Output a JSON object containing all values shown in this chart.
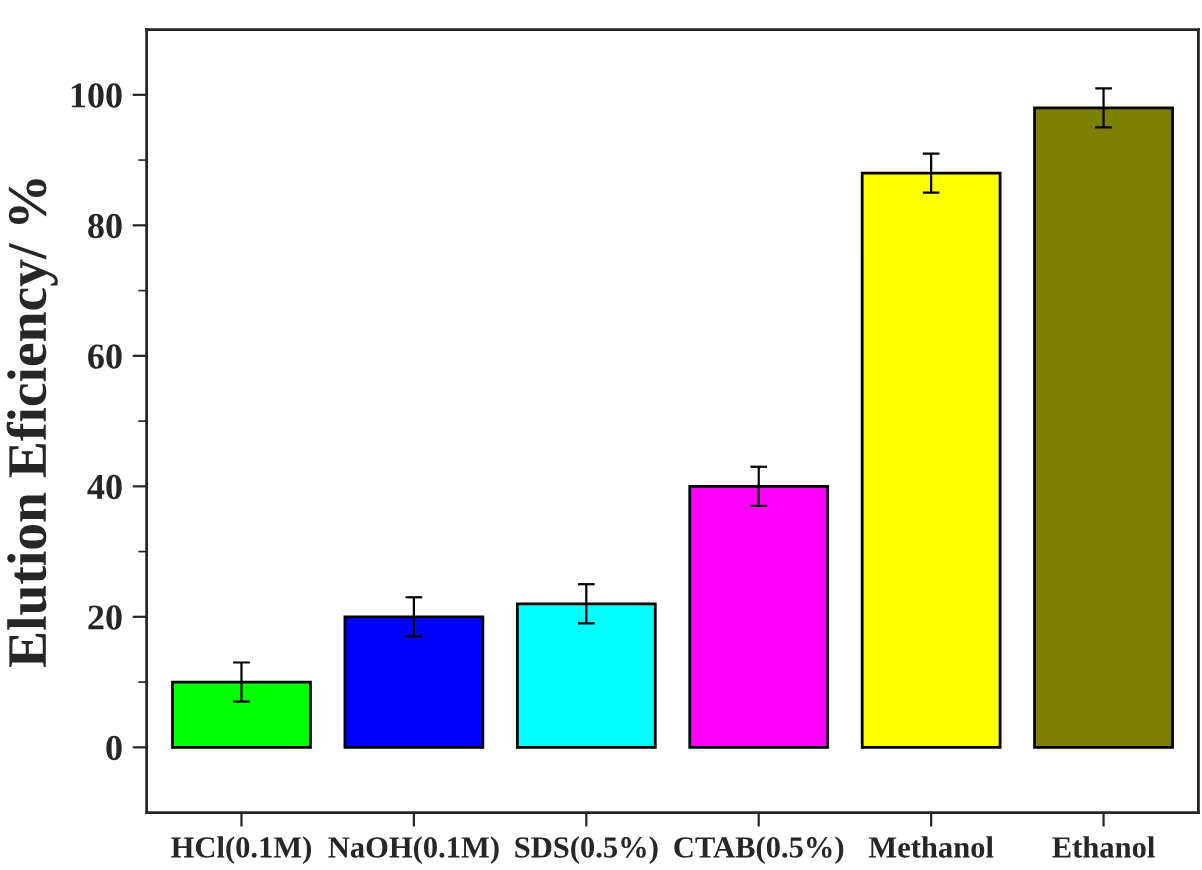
{
  "chart_data": {
    "type": "bar",
    "ylabel": "Elution Eficiency/ %",
    "categories": [
      "HCl(0.1M)",
      "NaOH(0.1M)",
      "SDS(0.5%)",
      "CTAB(0.5%)",
      "Methanol",
      "Ethanol"
    ],
    "values": [
      10,
      20,
      22,
      40,
      88,
      98
    ],
    "errors": [
      3,
      3,
      3,
      3,
      3,
      3
    ],
    "colors": [
      "#00ff00",
      "#0000ff",
      "#00ffff",
      "#ff00ff",
      "#ffff00",
      "#808000"
    ],
    "ylim": [
      -10,
      110
    ],
    "yticks": [
      0,
      20,
      40,
      60,
      80,
      100
    ],
    "grid": false
  }
}
